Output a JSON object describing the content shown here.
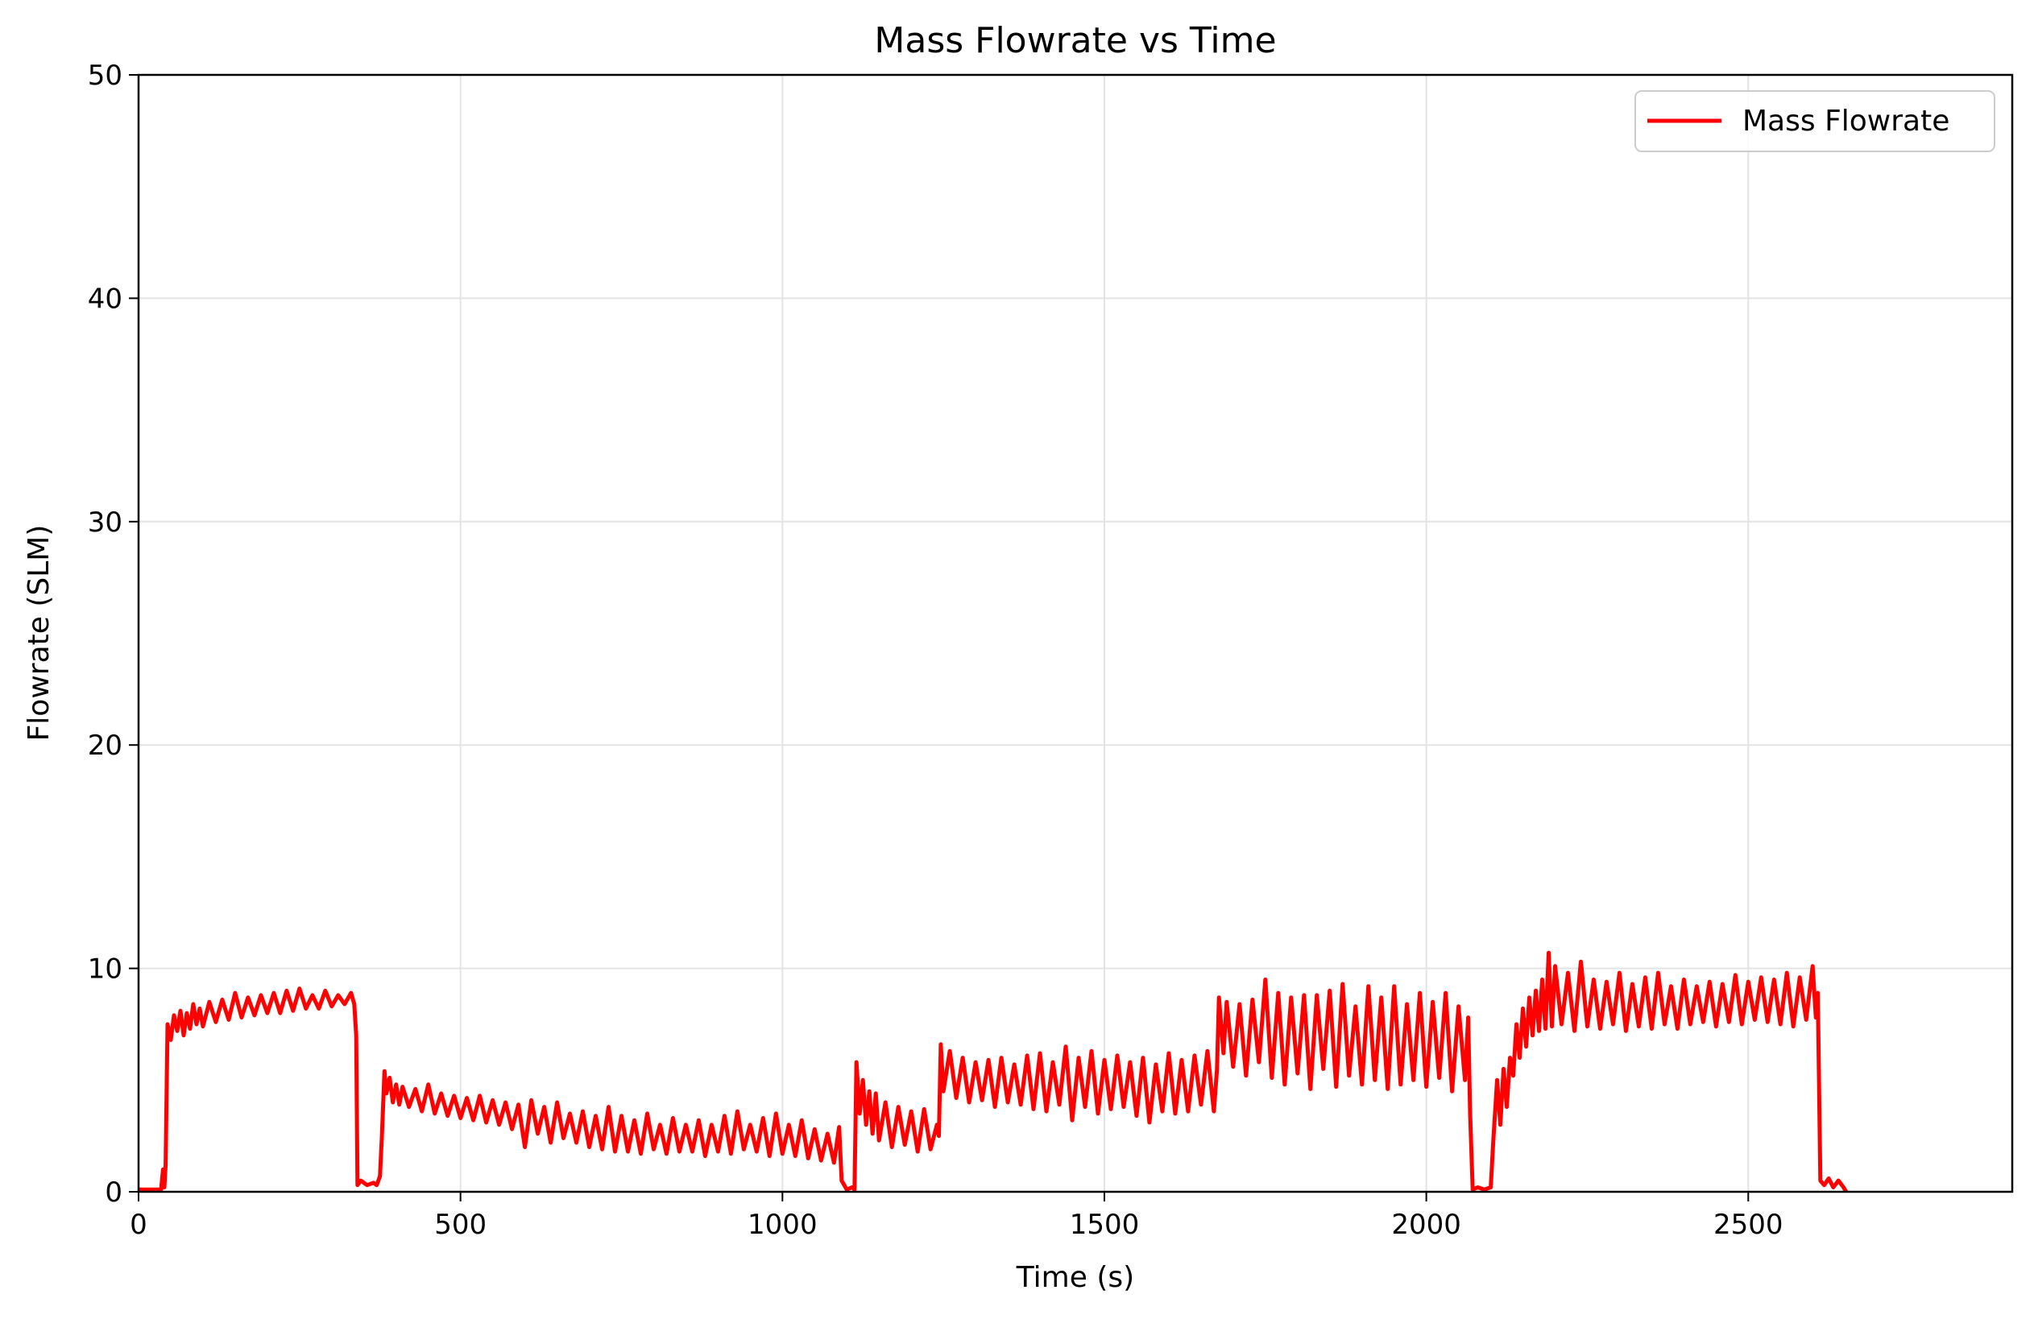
{
  "chart_data": {
    "type": "line",
    "title": "Mass Flowrate vs Time",
    "xlabel": "Time (s)",
    "ylabel": "Flowrate (SLM)",
    "xlim": [
      0,
      2910
    ],
    "ylim": [
      0,
      50
    ],
    "x_ticks": [
      0,
      500,
      1000,
      1500,
      2000,
      2500
    ],
    "y_ticks": [
      0,
      10,
      20,
      30,
      40,
      50
    ],
    "grid": true,
    "legend_position": "top-right",
    "series": [
      {
        "name": "Mass Flowrate",
        "color": "#ff0000",
        "points": [
          [
            0,
            0.1
          ],
          [
            35,
            0.1
          ],
          [
            38,
            1.0
          ],
          [
            40,
            0.2
          ],
          [
            42,
            1.2
          ],
          [
            45,
            7.5
          ],
          [
            50,
            6.8
          ],
          [
            55,
            7.9
          ],
          [
            60,
            7.2
          ],
          [
            65,
            8.1
          ],
          [
            70,
            7.0
          ],
          [
            75,
            8.0
          ],
          [
            80,
            7.3
          ],
          [
            85,
            8.4
          ],
          [
            90,
            7.5
          ],
          [
            95,
            8.2
          ],
          [
            100,
            7.4
          ],
          [
            110,
            8.5
          ],
          [
            120,
            7.6
          ],
          [
            130,
            8.6
          ],
          [
            140,
            7.7
          ],
          [
            150,
            8.9
          ],
          [
            160,
            7.8
          ],
          [
            170,
            8.7
          ],
          [
            180,
            7.9
          ],
          [
            190,
            8.8
          ],
          [
            200,
            8.0
          ],
          [
            210,
            8.9
          ],
          [
            220,
            8.0
          ],
          [
            230,
            9.0
          ],
          [
            240,
            8.1
          ],
          [
            250,
            9.1
          ],
          [
            260,
            8.2
          ],
          [
            270,
            8.8
          ],
          [
            280,
            8.2
          ],
          [
            290,
            9.0
          ],
          [
            300,
            8.3
          ],
          [
            310,
            8.8
          ],
          [
            320,
            8.4
          ],
          [
            330,
            8.9
          ],
          [
            335,
            8.4
          ],
          [
            338,
            7.0
          ],
          [
            340,
            0.3
          ],
          [
            345,
            0.5
          ],
          [
            355,
            0.3
          ],
          [
            365,
            0.4
          ],
          [
            370,
            0.3
          ],
          [
            375,
            0.7
          ],
          [
            378,
            2.5
          ],
          [
            382,
            5.4
          ],
          [
            385,
            4.4
          ],
          [
            390,
            5.1
          ],
          [
            395,
            4.0
          ],
          [
            400,
            4.8
          ],
          [
            405,
            3.9
          ],
          [
            410,
            4.7
          ],
          [
            420,
            3.8
          ],
          [
            430,
            4.6
          ],
          [
            440,
            3.6
          ],
          [
            450,
            4.8
          ],
          [
            460,
            3.5
          ],
          [
            470,
            4.4
          ],
          [
            480,
            3.4
          ],
          [
            490,
            4.3
          ],
          [
            500,
            3.3
          ],
          [
            510,
            4.2
          ],
          [
            520,
            3.2
          ],
          [
            530,
            4.3
          ],
          [
            540,
            3.1
          ],
          [
            550,
            4.1
          ],
          [
            560,
            3.0
          ],
          [
            570,
            4.0
          ],
          [
            580,
            2.8
          ],
          [
            590,
            3.9
          ],
          [
            600,
            2.0
          ],
          [
            610,
            4.1
          ],
          [
            620,
            2.6
          ],
          [
            630,
            3.8
          ],
          [
            640,
            2.2
          ],
          [
            650,
            4.0
          ],
          [
            660,
            2.4
          ],
          [
            670,
            3.5
          ],
          [
            680,
            2.2
          ],
          [
            690,
            3.6
          ],
          [
            700,
            2.0
          ],
          [
            710,
            3.4
          ],
          [
            720,
            1.9
          ],
          [
            730,
            3.8
          ],
          [
            740,
            1.8
          ],
          [
            750,
            3.4
          ],
          [
            760,
            1.8
          ],
          [
            770,
            3.2
          ],
          [
            780,
            1.7
          ],
          [
            790,
            3.5
          ],
          [
            800,
            1.9
          ],
          [
            810,
            3.0
          ],
          [
            820,
            1.7
          ],
          [
            830,
            3.3
          ],
          [
            840,
            1.8
          ],
          [
            850,
            3.0
          ],
          [
            860,
            1.8
          ],
          [
            870,
            3.2
          ],
          [
            880,
            1.6
          ],
          [
            890,
            3.0
          ],
          [
            900,
            1.8
          ],
          [
            910,
            3.4
          ],
          [
            920,
            1.7
          ],
          [
            930,
            3.6
          ],
          [
            940,
            1.9
          ],
          [
            950,
            3.0
          ],
          [
            960,
            1.8
          ],
          [
            970,
            3.3
          ],
          [
            980,
            1.6
          ],
          [
            990,
            3.5
          ],
          [
            1000,
            1.7
          ],
          [
            1010,
            3.0
          ],
          [
            1020,
            1.6
          ],
          [
            1030,
            3.2
          ],
          [
            1040,
            1.5
          ],
          [
            1050,
            2.8
          ],
          [
            1060,
            1.4
          ],
          [
            1070,
            2.6
          ],
          [
            1080,
            1.3
          ],
          [
            1088,
            2.9
          ],
          [
            1092,
            0.5
          ],
          [
            1100,
            0.1
          ],
          [
            1108,
            0.2
          ],
          [
            1112,
            0.1
          ],
          [
            1115,
            5.8
          ],
          [
            1120,
            3.5
          ],
          [
            1125,
            5.0
          ],
          [
            1130,
            3.0
          ],
          [
            1135,
            4.5
          ],
          [
            1140,
            2.6
          ],
          [
            1145,
            4.4
          ],
          [
            1150,
            2.3
          ],
          [
            1160,
            4.0
          ],
          [
            1170,
            2.0
          ],
          [
            1180,
            3.8
          ],
          [
            1190,
            2.1
          ],
          [
            1200,
            3.6
          ],
          [
            1210,
            1.8
          ],
          [
            1220,
            3.7
          ],
          [
            1230,
            1.9
          ],
          [
            1240,
            3.0
          ],
          [
            1243,
            2.5
          ],
          [
            1246,
            6.6
          ],
          [
            1250,
            4.5
          ],
          [
            1260,
            6.3
          ],
          [
            1270,
            4.2
          ],
          [
            1280,
            6.0
          ],
          [
            1290,
            4.0
          ],
          [
            1300,
            5.8
          ],
          [
            1310,
            4.1
          ],
          [
            1320,
            5.9
          ],
          [
            1330,
            3.8
          ],
          [
            1340,
            6.0
          ],
          [
            1350,
            4.0
          ],
          [
            1360,
            5.7
          ],
          [
            1370,
            3.9
          ],
          [
            1380,
            6.1
          ],
          [
            1390,
            3.7
          ],
          [
            1400,
            6.2
          ],
          [
            1410,
            3.6
          ],
          [
            1420,
            5.8
          ],
          [
            1430,
            3.9
          ],
          [
            1440,
            6.5
          ],
          [
            1450,
            3.2
          ],
          [
            1460,
            6.0
          ],
          [
            1470,
            3.8
          ],
          [
            1480,
            6.3
          ],
          [
            1490,
            3.5
          ],
          [
            1500,
            5.9
          ],
          [
            1510,
            3.7
          ],
          [
            1520,
            6.1
          ],
          [
            1530,
            3.8
          ],
          [
            1540,
            5.8
          ],
          [
            1550,
            3.4
          ],
          [
            1560,
            6.0
          ],
          [
            1570,
            3.1
          ],
          [
            1580,
            5.7
          ],
          [
            1590,
            3.6
          ],
          [
            1600,
            6.2
          ],
          [
            1610,
            3.5
          ],
          [
            1620,
            5.9
          ],
          [
            1630,
            3.6
          ],
          [
            1640,
            6.1
          ],
          [
            1650,
            3.9
          ],
          [
            1660,
            6.3
          ],
          [
            1670,
            3.6
          ],
          [
            1675,
            5.5
          ],
          [
            1678,
            8.7
          ],
          [
            1685,
            6.2
          ],
          [
            1690,
            8.5
          ],
          [
            1700,
            5.6
          ],
          [
            1710,
            8.4
          ],
          [
            1720,
            5.2
          ],
          [
            1730,
            8.6
          ],
          [
            1740,
            5.8
          ],
          [
            1750,
            9.5
          ],
          [
            1760,
            5.1
          ],
          [
            1770,
            8.9
          ],
          [
            1780,
            4.8
          ],
          [
            1790,
            8.7
          ],
          [
            1800,
            5.3
          ],
          [
            1810,
            8.8
          ],
          [
            1820,
            4.6
          ],
          [
            1830,
            8.8
          ],
          [
            1840,
            5.5
          ],
          [
            1850,
            9.0
          ],
          [
            1860,
            4.7
          ],
          [
            1870,
            9.3
          ],
          [
            1880,
            5.2
          ],
          [
            1890,
            8.3
          ],
          [
            1900,
            4.8
          ],
          [
            1910,
            9.2
          ],
          [
            1920,
            5.0
          ],
          [
            1930,
            8.7
          ],
          [
            1940,
            4.6
          ],
          [
            1950,
            9.2
          ],
          [
            1960,
            4.8
          ],
          [
            1970,
            8.4
          ],
          [
            1980,
            5.0
          ],
          [
            1990,
            8.9
          ],
          [
            2000,
            4.7
          ],
          [
            2010,
            8.5
          ],
          [
            2020,
            5.1
          ],
          [
            2030,
            8.9
          ],
          [
            2040,
            4.5
          ],
          [
            2050,
            8.3
          ],
          [
            2060,
            5.0
          ],
          [
            2065,
            7.8
          ],
          [
            2068,
            3.5
          ],
          [
            2072,
            0.1
          ],
          [
            2080,
            0.2
          ],
          [
            2090,
            0.1
          ],
          [
            2100,
            0.2
          ],
          [
            2104,
            2.3
          ],
          [
            2110,
            5.0
          ],
          [
            2115,
            3.0
          ],
          [
            2120,
            5.5
          ],
          [
            2125,
            3.8
          ],
          [
            2130,
            6.0
          ],
          [
            2135,
            5.2
          ],
          [
            2140,
            7.5
          ],
          [
            2145,
            6.0
          ],
          [
            2150,
            8.2
          ],
          [
            2155,
            6.5
          ],
          [
            2160,
            8.7
          ],
          [
            2165,
            7.0
          ],
          [
            2170,
            9.0
          ],
          [
            2175,
            7.2
          ],
          [
            2180,
            9.5
          ],
          [
            2185,
            7.3
          ],
          [
            2190,
            10.7
          ],
          [
            2195,
            7.4
          ],
          [
            2200,
            10.1
          ],
          [
            2210,
            7.5
          ],
          [
            2220,
            9.8
          ],
          [
            2230,
            7.2
          ],
          [
            2240,
            10.3
          ],
          [
            2250,
            7.4
          ],
          [
            2260,
            9.5
          ],
          [
            2270,
            7.3
          ],
          [
            2280,
            9.4
          ],
          [
            2290,
            7.5
          ],
          [
            2300,
            9.8
          ],
          [
            2310,
            7.2
          ],
          [
            2320,
            9.3
          ],
          [
            2330,
            7.4
          ],
          [
            2340,
            9.6
          ],
          [
            2350,
            7.3
          ],
          [
            2360,
            9.8
          ],
          [
            2370,
            7.5
          ],
          [
            2380,
            9.2
          ],
          [
            2390,
            7.3
          ],
          [
            2400,
            9.5
          ],
          [
            2410,
            7.5
          ],
          [
            2420,
            9.2
          ],
          [
            2430,
            7.6
          ],
          [
            2440,
            9.4
          ],
          [
            2450,
            7.4
          ],
          [
            2460,
            9.3
          ],
          [
            2470,
            7.6
          ],
          [
            2480,
            9.7
          ],
          [
            2490,
            7.5
          ],
          [
            2500,
            9.4
          ],
          [
            2510,
            7.7
          ],
          [
            2520,
            9.6
          ],
          [
            2530,
            7.6
          ],
          [
            2540,
            9.5
          ],
          [
            2550,
            7.5
          ],
          [
            2560,
            9.8
          ],
          [
            2570,
            7.4
          ],
          [
            2580,
            9.6
          ],
          [
            2590,
            7.7
          ],
          [
            2600,
            10.1
          ],
          [
            2605,
            7.8
          ],
          [
            2608,
            8.9
          ],
          [
            2612,
            0.5
          ],
          [
            2618,
            0.3
          ],
          [
            2625,
            0.6
          ],
          [
            2632,
            0.2
          ],
          [
            2640,
            0.5
          ],
          [
            2648,
            0.2
          ],
          [
            2652,
            0.0
          ]
        ]
      }
    ]
  }
}
